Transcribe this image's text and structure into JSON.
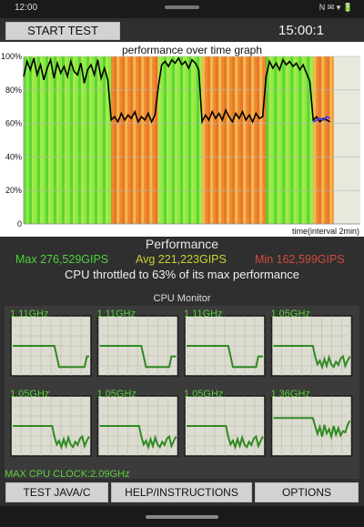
{
  "status_bar": {
    "time": "12:00",
    "icons": "N ✉ ▾ 🔋"
  },
  "header": {
    "start_label": "START TEST",
    "timer": "15:00:1"
  },
  "chart_data": {
    "type": "line",
    "title": "performance over time graph",
    "xlabel": "time(interval 2min)",
    "ylabel": "",
    "yticks": [
      "0",
      "20%",
      "40%",
      "60%",
      "80%",
      "100%"
    ],
    "ylim": [
      0,
      100
    ],
    "x_range": [
      0,
      100
    ],
    "series": [
      {
        "color": "#000000",
        "points": [
          [
            0,
            88
          ],
          [
            1,
            97
          ],
          [
            2,
            92
          ],
          [
            3,
            99
          ],
          [
            4,
            89
          ],
          [
            5,
            95
          ],
          [
            6,
            86
          ],
          [
            7,
            93
          ],
          [
            8,
            98
          ],
          [
            9,
            87
          ],
          [
            10,
            96
          ],
          [
            11,
            90
          ],
          [
            12,
            94
          ],
          [
            13,
            88
          ],
          [
            14,
            97
          ],
          [
            15,
            91
          ],
          [
            16,
            89
          ],
          [
            17,
            96
          ],
          [
            18,
            84
          ],
          [
            19,
            92
          ],
          [
            20,
            95
          ],
          [
            21,
            89
          ],
          [
            22,
            98
          ],
          [
            23,
            87
          ],
          [
            24,
            93
          ],
          [
            25,
            86
          ],
          [
            26,
            62
          ],
          [
            27,
            64
          ],
          [
            28,
            61
          ],
          [
            29,
            66
          ],
          [
            30,
            62
          ],
          [
            31,
            65
          ],
          [
            32,
            63
          ],
          [
            33,
            67
          ],
          [
            34,
            61
          ],
          [
            35,
            64
          ],
          [
            36,
            62
          ],
          [
            37,
            66
          ],
          [
            38,
            61
          ],
          [
            39,
            65
          ],
          [
            40,
            82
          ],
          [
            41,
            95
          ],
          [
            42,
            97
          ],
          [
            43,
            94
          ],
          [
            44,
            98
          ],
          [
            45,
            96
          ],
          [
            46,
            99
          ],
          [
            47,
            95
          ],
          [
            48,
            97
          ],
          [
            49,
            93
          ],
          [
            50,
            98
          ],
          [
            51,
            96
          ],
          [
            52,
            92
          ],
          [
            53,
            61
          ],
          [
            54,
            65
          ],
          [
            55,
            62
          ],
          [
            56,
            67
          ],
          [
            57,
            63
          ],
          [
            58,
            66
          ],
          [
            59,
            62
          ],
          [
            60,
            68
          ],
          [
            61,
            64
          ],
          [
            62,
            61
          ],
          [
            63,
            66
          ],
          [
            64,
            63
          ],
          [
            65,
            67
          ],
          [
            66,
            62
          ],
          [
            67,
            65
          ],
          [
            68,
            61
          ],
          [
            69,
            66
          ],
          [
            70,
            63
          ],
          [
            71,
            64
          ],
          [
            72,
            88
          ],
          [
            73,
            97
          ],
          [
            74,
            93
          ],
          [
            75,
            96
          ],
          [
            76,
            92
          ],
          [
            77,
            98
          ],
          [
            78,
            95
          ],
          [
            79,
            97
          ],
          [
            80,
            94
          ],
          [
            81,
            96
          ],
          [
            82,
            92
          ],
          [
            83,
            95
          ],
          [
            84,
            90
          ],
          [
            85,
            85
          ],
          [
            86,
            62
          ],
          [
            87,
            64
          ],
          [
            88,
            61
          ],
          [
            89,
            63
          ],
          [
            90,
            62
          ],
          [
            91,
            61
          ]
        ]
      },
      {
        "color": "#3b3bff",
        "points": [
          [
            86,
            61
          ],
          [
            87,
            62
          ],
          [
            88,
            63
          ],
          [
            89,
            62
          ],
          [
            90,
            64
          ],
          [
            91,
            63
          ]
        ]
      }
    ],
    "bands": [
      {
        "from": 0,
        "to": 26,
        "level": "high"
      },
      {
        "from": 26,
        "to": 40,
        "level": "low"
      },
      {
        "from": 40,
        "to": 53,
        "level": "high"
      },
      {
        "from": 53,
        "to": 72,
        "level": "low"
      },
      {
        "from": 72,
        "to": 86,
        "level": "high"
      },
      {
        "from": 86,
        "to": 92,
        "level": "low"
      }
    ],
    "band_colors": {
      "high": [
        "#6be03a",
        "#8ee843",
        "#5ad633",
        "#a4eb4a"
      ],
      "low": [
        "#f39a2a",
        "#e7762a",
        "#f6b84a",
        "#ec8a33"
      ]
    }
  },
  "performance": {
    "title": "Performance",
    "max": "Max 276,529GIPS",
    "avg": "Avg 221,223GIPS",
    "min": "Min 162,599GIPS",
    "throttled": "CPU throttled to 63% of its max performance"
  },
  "cpu_monitor": {
    "title": "CPU Monitor",
    "max_clock": "MAX CPU CLOCK:2.09GHz",
    "line_color": "#2f8a22",
    "cores": [
      {
        "freq": "1.11GHz",
        "levels": [
          50,
          50,
          50,
          50,
          50,
          50,
          50,
          50,
          50,
          50,
          50,
          50,
          50,
          50,
          50,
          50,
          50,
          50,
          50,
          30,
          10,
          10,
          10,
          10,
          10,
          10,
          10,
          10,
          10,
          10,
          10,
          10,
          30,
          30
        ]
      },
      {
        "freq": "1.11GHz",
        "levels": [
          50,
          50,
          50,
          50,
          50,
          50,
          50,
          50,
          50,
          50,
          50,
          50,
          50,
          50,
          50,
          50,
          50,
          50,
          50,
          30,
          10,
          10,
          10,
          10,
          10,
          10,
          10,
          10,
          10,
          10,
          10,
          30,
          30,
          30
        ]
      },
      {
        "freq": "1.11GHz",
        "levels": [
          50,
          50,
          50,
          50,
          50,
          50,
          50,
          50,
          50,
          50,
          50,
          50,
          50,
          50,
          50,
          50,
          50,
          50,
          50,
          30,
          10,
          10,
          10,
          10,
          10,
          10,
          10,
          10,
          10,
          10,
          10,
          30,
          30,
          30
        ]
      },
      {
        "freq": "1.05GHz",
        "levels": [
          50,
          50,
          50,
          50,
          50,
          50,
          50,
          50,
          50,
          50,
          50,
          50,
          50,
          50,
          50,
          50,
          50,
          50,
          30,
          15,
          22,
          10,
          25,
          12,
          28,
          15,
          10,
          20,
          14,
          26,
          30,
          12,
          22,
          30
        ]
      },
      {
        "freq": "1.05GHz",
        "levels": [
          50,
          50,
          50,
          50,
          50,
          50,
          50,
          50,
          50,
          50,
          50,
          50,
          50,
          50,
          50,
          50,
          50,
          50,
          30,
          15,
          22,
          10,
          25,
          12,
          28,
          15,
          10,
          20,
          14,
          26,
          30,
          12,
          22,
          30
        ]
      },
      {
        "freq": "1.05GHz",
        "levels": [
          50,
          50,
          50,
          50,
          50,
          50,
          50,
          50,
          50,
          50,
          50,
          50,
          50,
          50,
          50,
          50,
          50,
          50,
          30,
          15,
          22,
          10,
          25,
          12,
          28,
          15,
          10,
          20,
          14,
          26,
          30,
          12,
          22,
          30
        ]
      },
      {
        "freq": "1.05GHz",
        "levels": [
          50,
          50,
          50,
          50,
          50,
          50,
          50,
          50,
          50,
          50,
          50,
          50,
          50,
          50,
          50,
          50,
          50,
          50,
          30,
          15,
          22,
          10,
          25,
          12,
          28,
          15,
          10,
          20,
          14,
          26,
          30,
          12,
          22,
          30
        ]
      },
      {
        "freq": "1.36GHz",
        "levels": [
          65,
          65,
          65,
          65,
          65,
          65,
          65,
          65,
          65,
          65,
          65,
          65,
          65,
          65,
          65,
          65,
          65,
          65,
          50,
          35,
          48,
          30,
          52,
          36,
          44,
          30,
          50,
          34,
          46,
          32,
          40,
          38,
          52,
          60
        ]
      }
    ]
  },
  "footer": {
    "java_label": "TEST JAVA/C",
    "help_label": "HELP/INSTRUCTIONS",
    "options_label": "OPTIONS"
  }
}
